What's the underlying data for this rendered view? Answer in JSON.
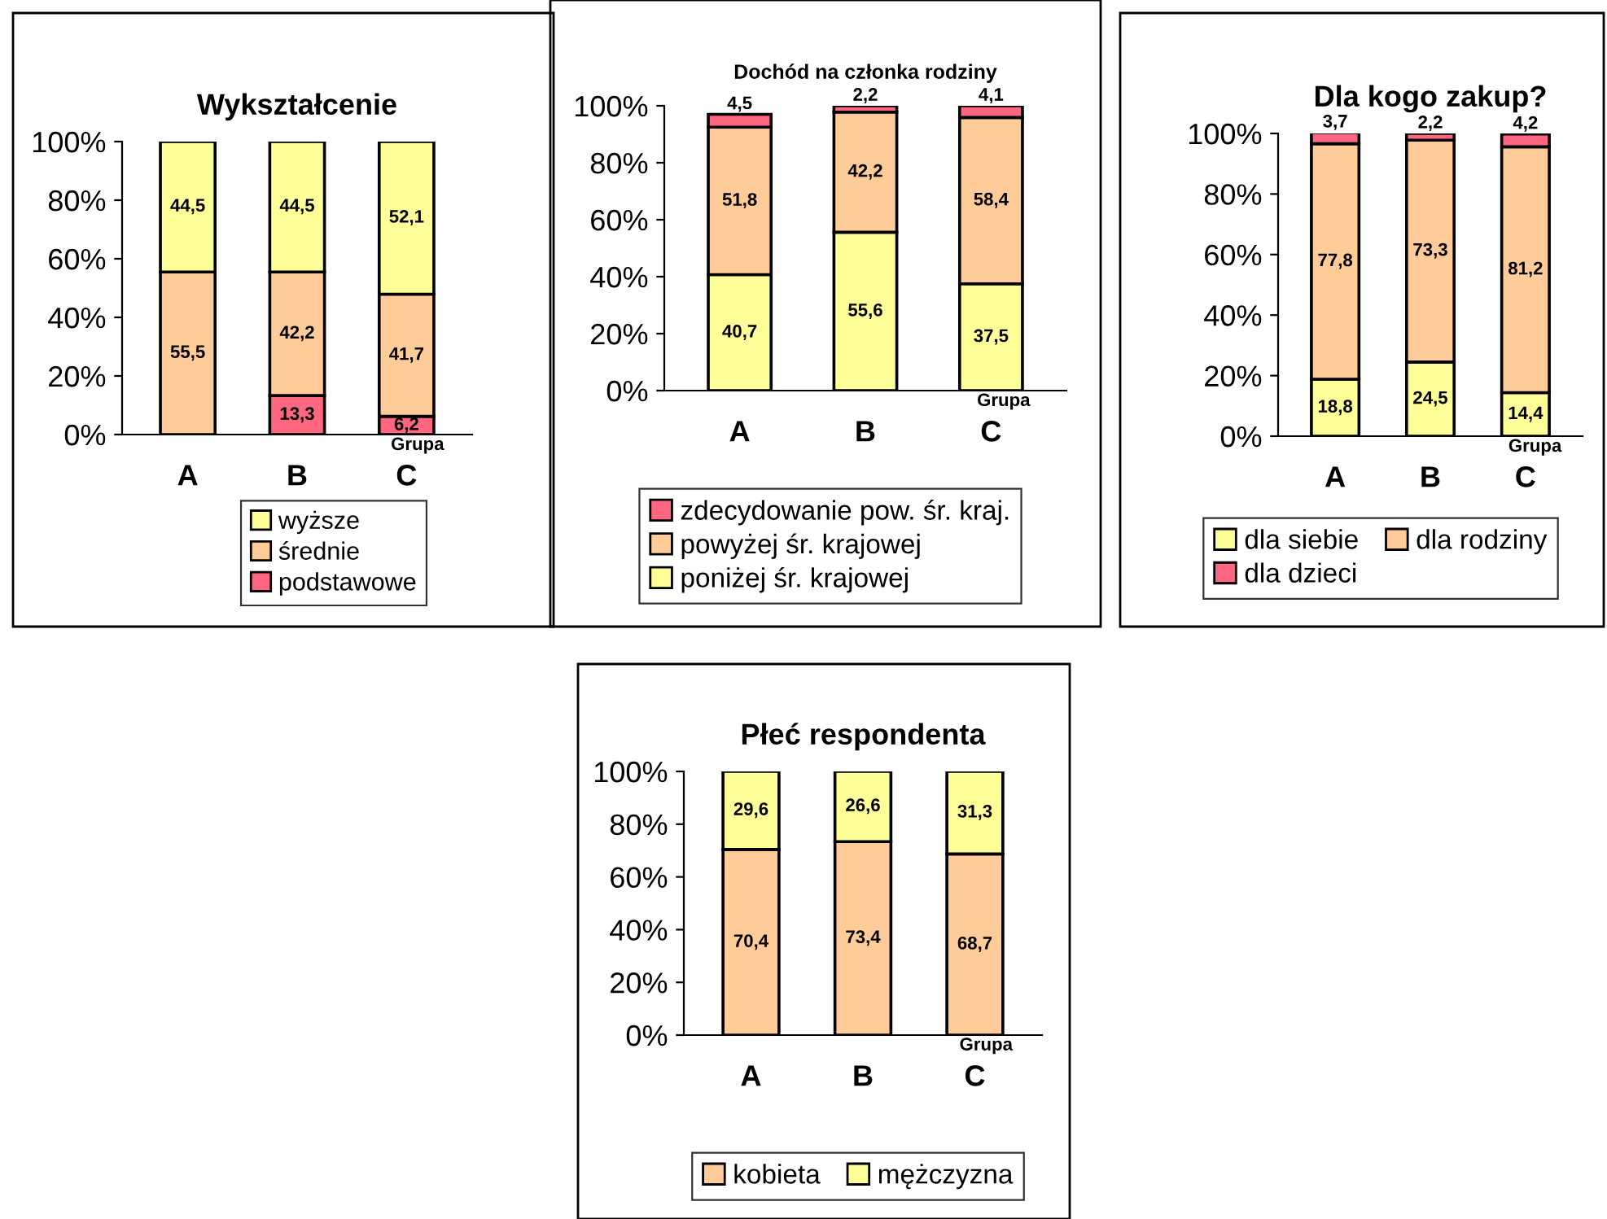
{
  "chart_data": [
    {
      "type": "bar",
      "title": "Wykształcenie",
      "xlabel": "Grupa",
      "categories": [
        "A",
        "B",
        "C"
      ],
      "stacked": true,
      "legend": "bottom",
      "grid": false,
      "ylim": [
        0,
        100
      ],
      "yticks": [
        {
          "value": 0,
          "label": "0%"
        },
        {
          "value": 20,
          "label": "20%"
        },
        {
          "value": 40,
          "label": "40%"
        },
        {
          "value": 60,
          "label": "60%"
        },
        {
          "value": 80,
          "label": "80%"
        },
        {
          "value": 100,
          "label": "100%"
        }
      ],
      "series": [
        {
          "name": "podstawowe",
          "color": "#ff6680",
          "values": [
            null,
            13.3,
            6.2
          ],
          "value_labels": [
            null,
            "13,3",
            "6,2"
          ]
        },
        {
          "name": "średnie",
          "color": "#ffcc99",
          "values": [
            55.5,
            42.2,
            41.7
          ],
          "value_labels": [
            "55,5",
            "42,2",
            "41,7"
          ]
        },
        {
          "name": "wyższe",
          "color": "#ffff99",
          "values": [
            44.5,
            44.5,
            52.1
          ],
          "value_labels": [
            "44,5",
            "44,5",
            "52,1"
          ]
        }
      ]
    },
    {
      "type": "bar",
      "title": "Dochód na członka rodziny",
      "xlabel": "Grupa",
      "categories": [
        "A",
        "B",
        "C"
      ],
      "stacked": true,
      "legend": "bottom",
      "grid": false,
      "ylim": [
        0,
        100
      ],
      "yticks": [
        {
          "value": 0,
          "label": "0%"
        },
        {
          "value": 20,
          "label": "20%"
        },
        {
          "value": 40,
          "label": "40%"
        },
        {
          "value": 60,
          "label": "60%"
        },
        {
          "value": 80,
          "label": "80%"
        },
        {
          "value": 100,
          "label": "100%"
        }
      ],
      "series": [
        {
          "name": "poniżej śr. krajowej",
          "color": "#ffff99",
          "values": [
            40.7,
            55.6,
            37.5
          ],
          "value_labels": [
            "40,7",
            "55,6",
            "37,5"
          ]
        },
        {
          "name": "powyżej śr. krajowej",
          "color": "#ffcc99",
          "values": [
            51.8,
            42.2,
            58.4
          ],
          "value_labels": [
            "51,8",
            "42,2",
            "58,4"
          ]
        },
        {
          "name": "zdecydowanie pow. śr. kraj.",
          "color": "#ff6680",
          "values": [
            4.5,
            2.2,
            4.1
          ],
          "value_labels": [
            "4,5",
            "2,2",
            "4,1"
          ]
        }
      ]
    },
    {
      "type": "bar",
      "title": "Dla kogo zakup?",
      "xlabel": "Grupa",
      "categories": [
        "A",
        "B",
        "C"
      ],
      "stacked": true,
      "legend": "bottom",
      "grid": false,
      "ylim": [
        0,
        100
      ],
      "yticks": [
        {
          "value": 0,
          "label": "0%"
        },
        {
          "value": 20,
          "label": "20%"
        },
        {
          "value": 40,
          "label": "40%"
        },
        {
          "value": 60,
          "label": "60%"
        },
        {
          "value": 80,
          "label": "80%"
        },
        {
          "value": 100,
          "label": "100%"
        }
      ],
      "series": [
        {
          "name": "dla siebie",
          "color": "#ffff99",
          "values": [
            18.8,
            24.5,
            14.4
          ],
          "value_labels": [
            "18,8",
            "24,5",
            "14,4"
          ]
        },
        {
          "name": "dla rodziny",
          "color": "#ffcc99",
          "values": [
            77.8,
            73.3,
            81.2
          ],
          "value_labels": [
            "77,8",
            "73,3",
            "81,2"
          ]
        },
        {
          "name": "dla dzieci",
          "color": "#ff6680",
          "values": [
            3.7,
            2.2,
            4.2
          ],
          "value_labels": [
            "3,7",
            "2,2",
            "4,2"
          ]
        }
      ]
    },
    {
      "type": "bar",
      "title": "Płeć respondenta",
      "xlabel": "Grupa",
      "categories": [
        "A",
        "B",
        "C"
      ],
      "stacked": true,
      "legend": "bottom",
      "grid": false,
      "ylim": [
        0,
        100
      ],
      "yticks": [
        {
          "value": 0,
          "label": "0%"
        },
        {
          "value": 20,
          "label": "20%"
        },
        {
          "value": 40,
          "label": "40%"
        },
        {
          "value": 60,
          "label": "60%"
        },
        {
          "value": 80,
          "label": "80%"
        },
        {
          "value": 100,
          "label": "100%"
        }
      ],
      "series": [
        {
          "name": "kobieta",
          "color": "#ffcc99",
          "values": [
            70.4,
            73.4,
            68.7
          ],
          "value_labels": [
            "70,4",
            "73,4",
            "68,7"
          ]
        },
        {
          "name": "mężczyzna",
          "color": "#ffff99",
          "values": [
            29.6,
            26.6,
            31.3
          ],
          "value_labels": [
            "29,6",
            "26,6",
            "31,3"
          ]
        }
      ]
    }
  ]
}
